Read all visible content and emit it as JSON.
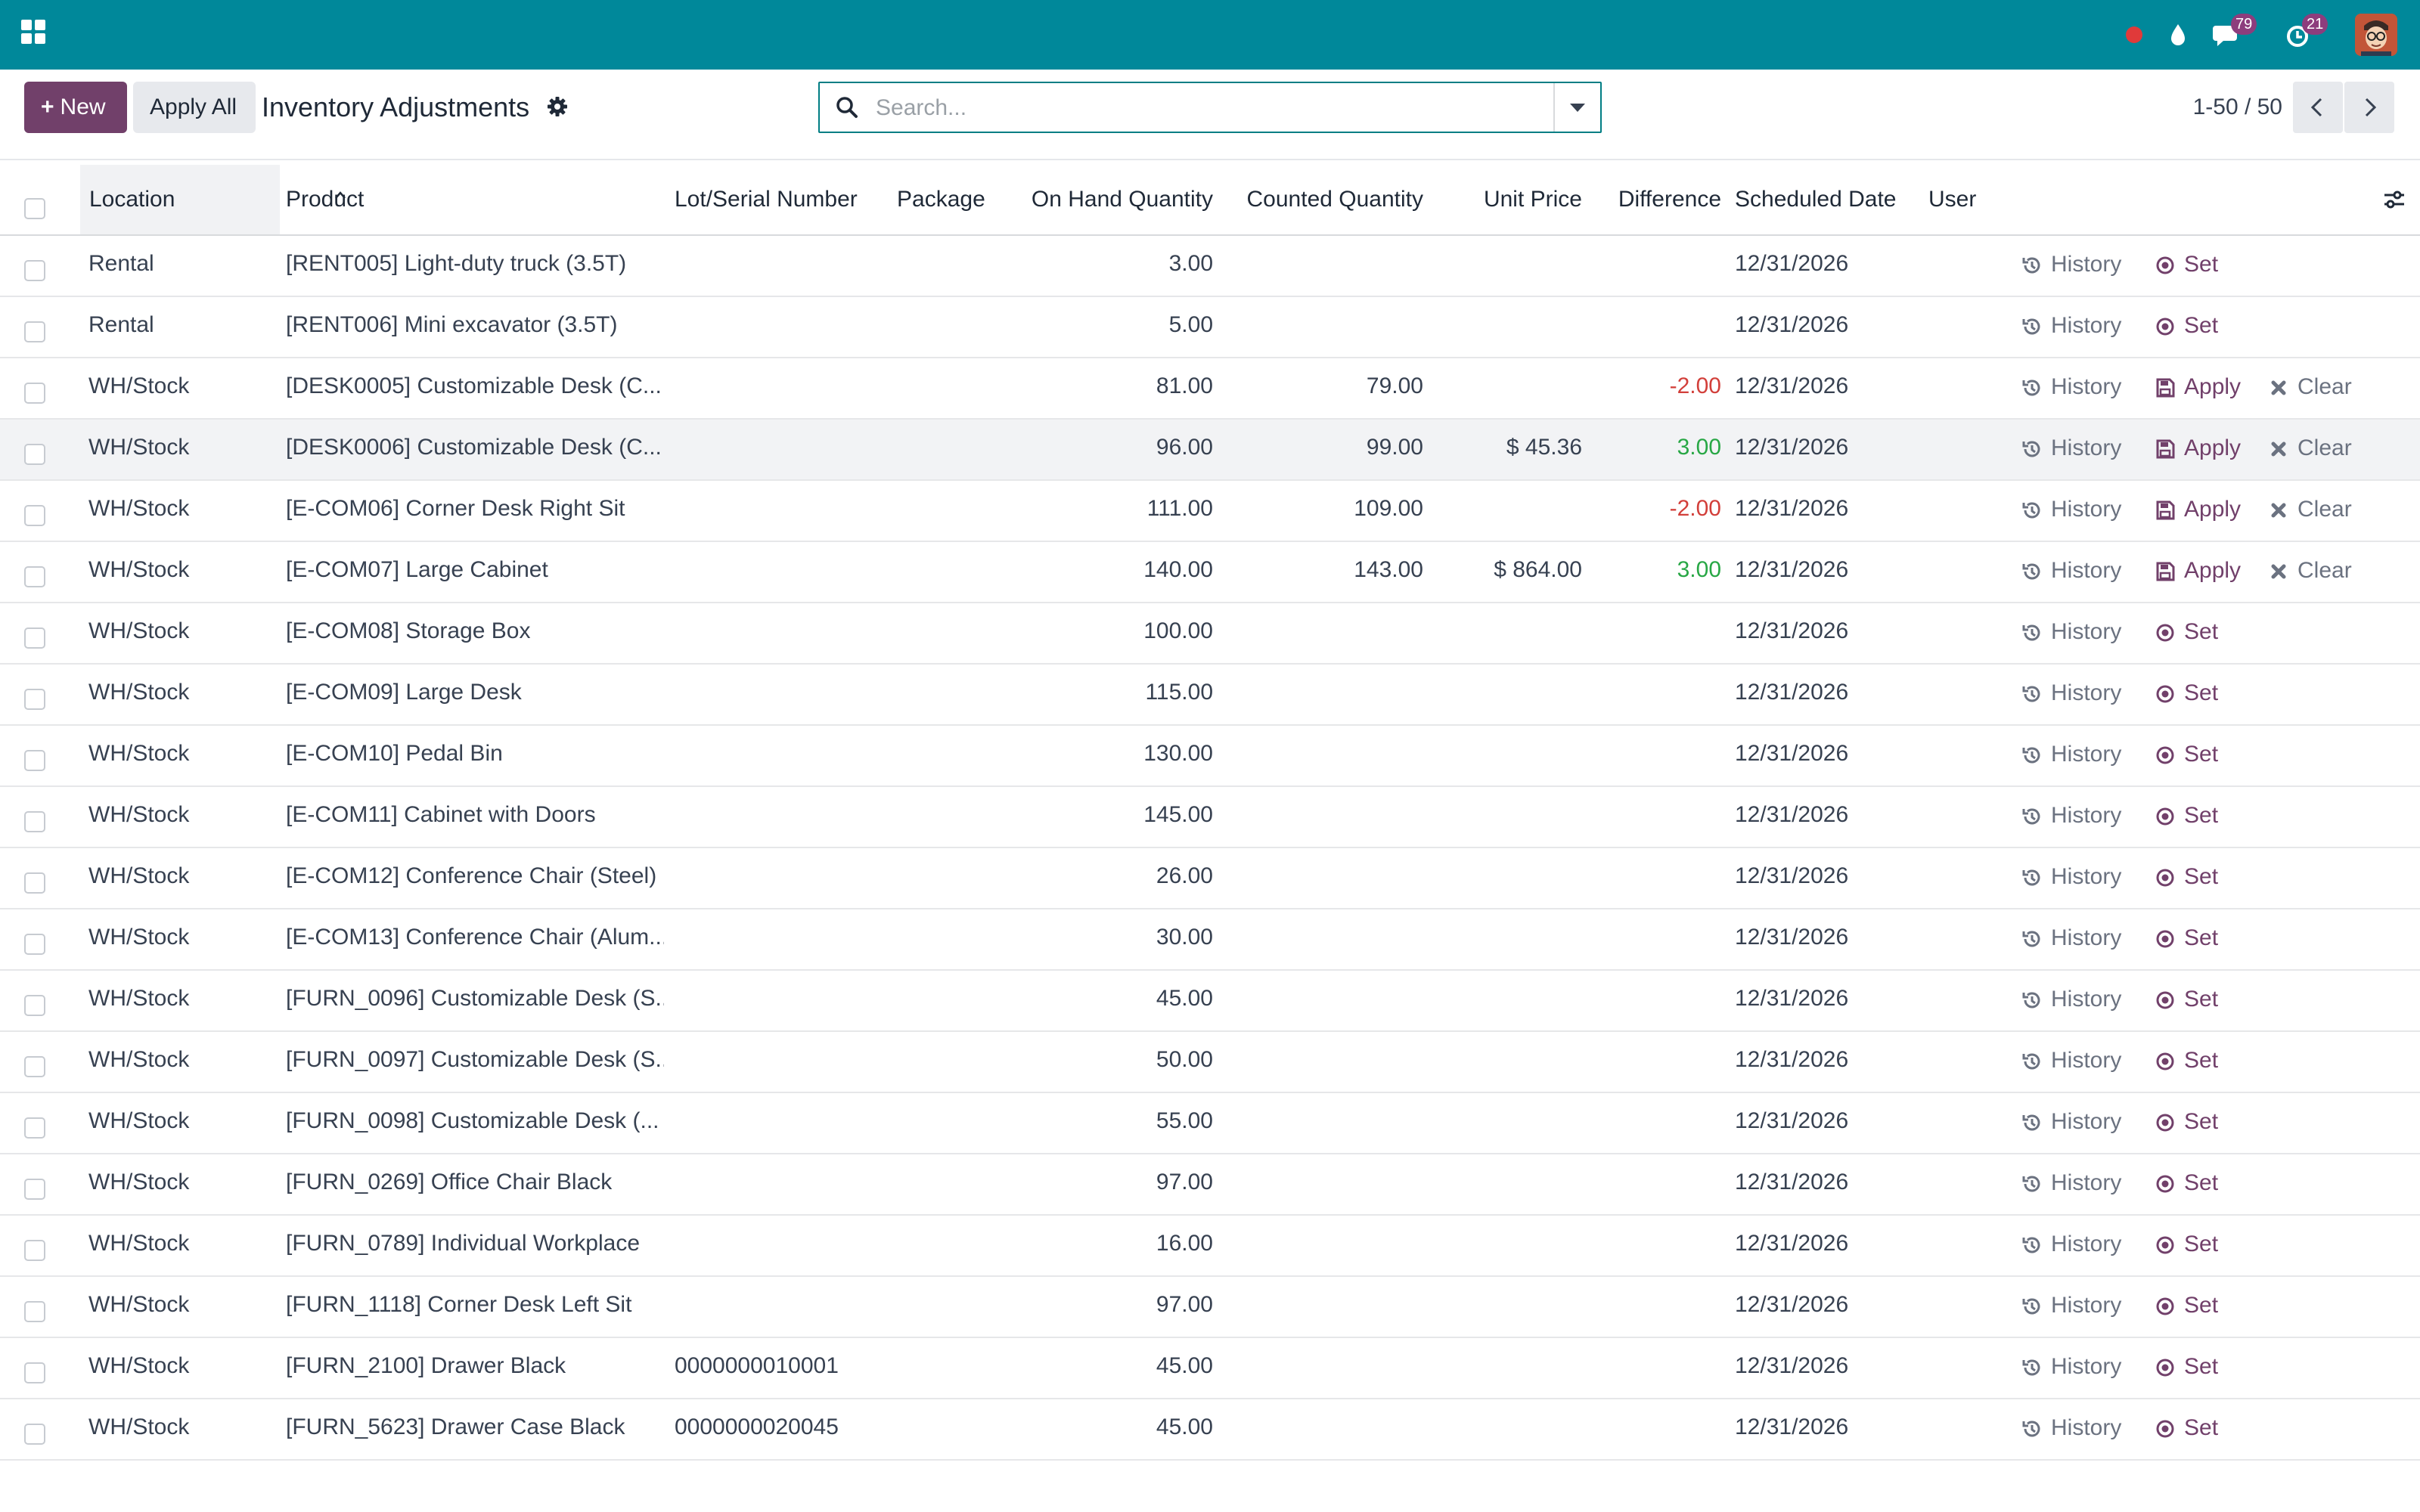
{
  "navbar": {
    "icons": [
      "apps-grid-icon",
      "record-dot-icon",
      "droplet-icon",
      "chat-icon",
      "activity-clock-icon"
    ],
    "messages_badge": "79",
    "activities_badge": "21",
    "colors": {
      "bar": "#00889a",
      "badge": "#8d3d7d"
    }
  },
  "control_panel": {
    "new_label": "New",
    "apply_all_label": "Apply All",
    "title": "Inventory Adjustments",
    "search_placeholder": "Search...",
    "pager_value": "1-50 / 50",
    "colors": {
      "primary": "#71406a"
    }
  },
  "table": {
    "columns": {
      "location": "Location",
      "product": "Product",
      "lot": "Lot/Serial Number",
      "package": "Package",
      "on_hand": "On Hand Quantity",
      "counted": "Counted Quantity",
      "unit_price": "Unit Price",
      "difference": "Difference",
      "scheduled": "Scheduled Date",
      "user": "User"
    },
    "sorted_by": "Location",
    "actions": {
      "history": "History",
      "set": "Set",
      "apply": "Apply",
      "clear": "Clear"
    },
    "rows": [
      {
        "location": "Rental",
        "product": "[RENT005] Light-duty truck (3.5T)",
        "lot": "",
        "on_hand": "3.00",
        "counted": "",
        "unit_price": "",
        "difference": "",
        "diff_sign": "",
        "scheduled": "12/31/2026",
        "mode": "set"
      },
      {
        "location": "Rental",
        "product": "[RENT006] Mini excavator (3.5T)",
        "lot": "",
        "on_hand": "5.00",
        "counted": "",
        "unit_price": "",
        "difference": "",
        "diff_sign": "",
        "scheduled": "12/31/2026",
        "mode": "set"
      },
      {
        "location": "WH/Stock",
        "product": "[DESK0005] Customizable Desk (C...",
        "lot": "",
        "on_hand": "81.00",
        "counted": "79.00",
        "unit_price": "",
        "difference": "-2.00",
        "diff_sign": "neg",
        "scheduled": "12/31/2026",
        "mode": "apply"
      },
      {
        "location": "WH/Stock",
        "product": "[DESK0006] Customizable Desk (C...",
        "lot": "",
        "on_hand": "96.00",
        "counted": "99.00",
        "unit_price": "$ 45.36",
        "difference": "3.00",
        "diff_sign": "pos",
        "scheduled": "12/31/2026",
        "mode": "apply",
        "highlight": true
      },
      {
        "location": "WH/Stock",
        "product": "[E-COM06] Corner Desk Right Sit",
        "lot": "",
        "on_hand": "111.00",
        "counted": "109.00",
        "unit_price": "",
        "difference": "-2.00",
        "diff_sign": "neg",
        "scheduled": "12/31/2026",
        "mode": "apply"
      },
      {
        "location": "WH/Stock",
        "product": "[E-COM07] Large Cabinet",
        "lot": "",
        "on_hand": "140.00",
        "counted": "143.00",
        "unit_price": "$ 864.00",
        "difference": "3.00",
        "diff_sign": "pos",
        "scheduled": "12/31/2026",
        "mode": "apply"
      },
      {
        "location": "WH/Stock",
        "product": "[E-COM08] Storage Box",
        "lot": "",
        "on_hand": "100.00",
        "counted": "",
        "unit_price": "",
        "difference": "",
        "diff_sign": "",
        "scheduled": "12/31/2026",
        "mode": "set"
      },
      {
        "location": "WH/Stock",
        "product": "[E-COM09] Large Desk",
        "lot": "",
        "on_hand": "115.00",
        "counted": "",
        "unit_price": "",
        "difference": "",
        "diff_sign": "",
        "scheduled": "12/31/2026",
        "mode": "set"
      },
      {
        "location": "WH/Stock",
        "product": "[E-COM10] Pedal Bin",
        "lot": "",
        "on_hand": "130.00",
        "counted": "",
        "unit_price": "",
        "difference": "",
        "diff_sign": "",
        "scheduled": "12/31/2026",
        "mode": "set"
      },
      {
        "location": "WH/Stock",
        "product": "[E-COM11] Cabinet with Doors",
        "lot": "",
        "on_hand": "145.00",
        "counted": "",
        "unit_price": "",
        "difference": "",
        "diff_sign": "",
        "scheduled": "12/31/2026",
        "mode": "set"
      },
      {
        "location": "WH/Stock",
        "product": "[E-COM12] Conference Chair (Steel)",
        "lot": "",
        "on_hand": "26.00",
        "counted": "",
        "unit_price": "",
        "difference": "",
        "diff_sign": "",
        "scheduled": "12/31/2026",
        "mode": "set"
      },
      {
        "location": "WH/Stock",
        "product": "[E-COM13] Conference Chair (Alum...",
        "lot": "",
        "on_hand": "30.00",
        "counted": "",
        "unit_price": "",
        "difference": "",
        "diff_sign": "",
        "scheduled": "12/31/2026",
        "mode": "set"
      },
      {
        "location": "WH/Stock",
        "product": "[FURN_0096] Customizable Desk (S...",
        "lot": "",
        "on_hand": "45.00",
        "counted": "",
        "unit_price": "",
        "difference": "",
        "diff_sign": "",
        "scheduled": "12/31/2026",
        "mode": "set"
      },
      {
        "location": "WH/Stock",
        "product": "[FURN_0097] Customizable Desk (S...",
        "lot": "",
        "on_hand": "50.00",
        "counted": "",
        "unit_price": "",
        "difference": "",
        "diff_sign": "",
        "scheduled": "12/31/2026",
        "mode": "set"
      },
      {
        "location": "WH/Stock",
        "product": "[FURN_0098] Customizable Desk (...",
        "lot": "",
        "on_hand": "55.00",
        "counted": "",
        "unit_price": "",
        "difference": "",
        "diff_sign": "",
        "scheduled": "12/31/2026",
        "mode": "set"
      },
      {
        "location": "WH/Stock",
        "product": "[FURN_0269] Office Chair Black",
        "lot": "",
        "on_hand": "97.00",
        "counted": "",
        "unit_price": "",
        "difference": "",
        "diff_sign": "",
        "scheduled": "12/31/2026",
        "mode": "set"
      },
      {
        "location": "WH/Stock",
        "product": "[FURN_0789] Individual Workplace",
        "lot": "",
        "on_hand": "16.00",
        "counted": "",
        "unit_price": "",
        "difference": "",
        "diff_sign": "",
        "scheduled": "12/31/2026",
        "mode": "set"
      },
      {
        "location": "WH/Stock",
        "product": "[FURN_1118] Corner Desk Left Sit",
        "lot": "",
        "on_hand": "97.00",
        "counted": "",
        "unit_price": "",
        "difference": "",
        "diff_sign": "",
        "scheduled": "12/31/2026",
        "mode": "set"
      },
      {
        "location": "WH/Stock",
        "product": "[FURN_2100] Drawer Black",
        "lot": "0000000010001",
        "on_hand": "45.00",
        "counted": "",
        "unit_price": "",
        "difference": "",
        "diff_sign": "",
        "scheduled": "12/31/2026",
        "mode": "set"
      },
      {
        "location": "WH/Stock",
        "product": "[FURN_5623] Drawer Case Black",
        "lot": "0000000020045",
        "on_hand": "45.00",
        "counted": "",
        "unit_price": "",
        "difference": "",
        "diff_sign": "",
        "scheduled": "12/31/2026",
        "mode": "set"
      }
    ]
  }
}
